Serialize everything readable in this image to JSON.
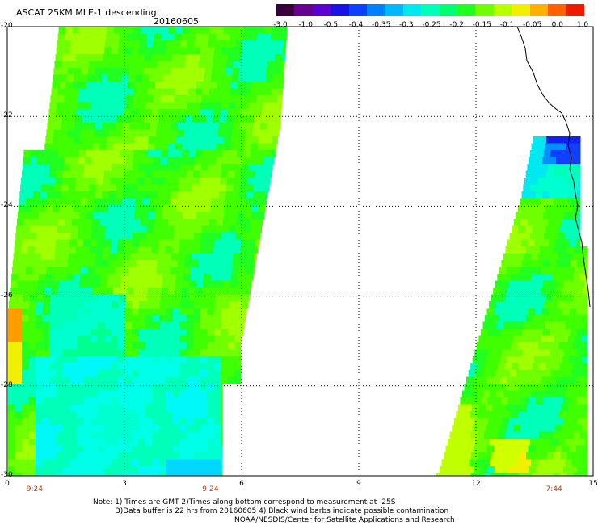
{
  "header": {
    "title": "ASCAT 25KM MLE-1 descending",
    "date": "20160605"
  },
  "colorbar": {
    "colors": [
      "#3a003a",
      "#6a0090",
      "#5a00d0",
      "#1a10e8",
      "#0a40ff",
      "#0080ff",
      "#00b8ff",
      "#00e8f0",
      "#00ffb8",
      "#00ff70",
      "#20ff20",
      "#70ff00",
      "#b8ff00",
      "#f0f000",
      "#ffb000",
      "#ff6000",
      "#f01800"
    ],
    "tick_labels": [
      "-3.0",
      "-1.0",
      "-0.5",
      "-0.4",
      "-0.35",
      "-0.3",
      "-0.25",
      "-0.2",
      "-0.15",
      "-0.1",
      "-0.05",
      "0.0",
      "1.0"
    ]
  },
  "map": {
    "lon_range": [
      0,
      15
    ],
    "lat_range": [
      -20,
      -30
    ],
    "lon_tick_labels": [
      "0",
      "3",
      "6",
      "9",
      "12",
      "15"
    ],
    "lat_tick_labels": [
      "-20",
      "-22",
      "-24",
      "-26",
      "-28",
      "-30"
    ],
    "pass_times": [
      {
        "label": "9:24",
        "lon": 0.7
      },
      {
        "label": "9:24",
        "lon": 5.2
      },
      {
        "label": "7:44",
        "lon": 14.0
      }
    ]
  },
  "notes": {
    "line1": "Note: 1) Times are GMT 2)Times along bottom correspond to measurement at -25S",
    "line2": "3)Data buffer is 22 hrs from 20160605 4) Black wind barbs indicate possible contamination",
    "line3": "NOAA/NESDIS/Center for Satellite Applications and Research"
  }
}
